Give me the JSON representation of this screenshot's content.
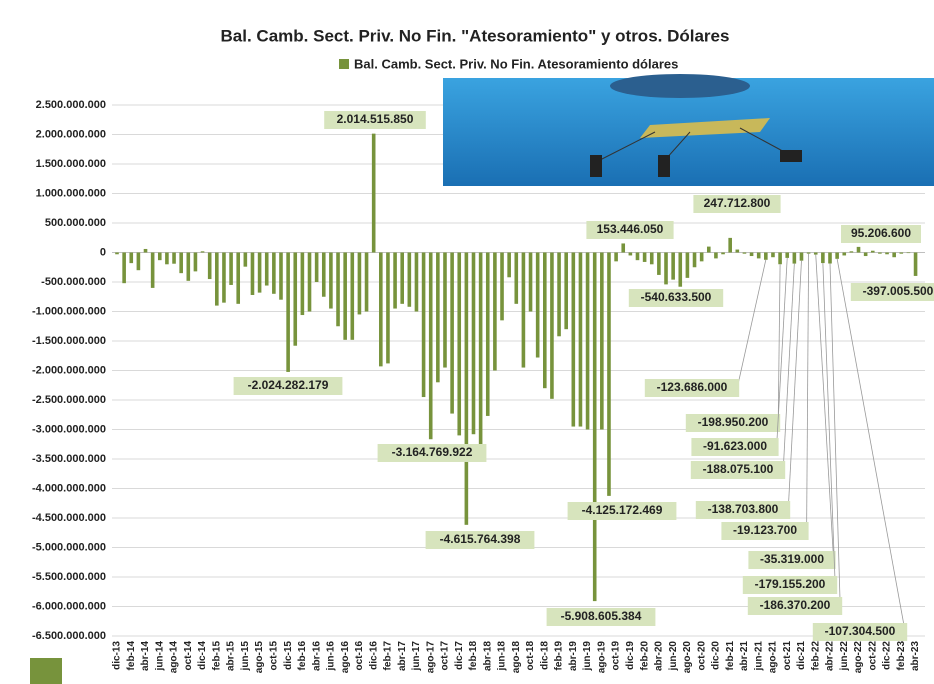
{
  "chart_data": {
    "type": "bar",
    "title": "Bal. Camb. Sect. Priv. No Fin. \"Atesoramiento\"  y otros. Dólares",
    "categories": [
      "dic-13",
      null,
      "feb-14",
      null,
      "abr-14",
      null,
      "jun-14",
      null,
      "ago-14",
      null,
      "oct-14",
      null,
      "dic-14",
      null,
      "feb-15",
      null,
      "abr-15",
      null,
      "jun-15",
      null,
      "ago-15",
      null,
      "oct-15",
      null,
      "dic-15",
      null,
      "feb-16",
      null,
      "abr-16",
      null,
      "jun-16",
      null,
      "ago-16",
      null,
      "oct-16",
      null,
      "dic-16",
      null,
      "feb-17",
      null,
      "abr-17",
      null,
      "jun-17",
      null,
      "ago-17",
      null,
      "oct-17",
      null,
      "dic-17",
      null,
      "feb-18",
      null,
      "abr-18",
      null,
      "jun-18",
      null,
      "ago-18",
      null,
      "oct-18",
      null,
      "dic-18",
      null,
      "feb-19",
      null,
      "abr-19",
      null,
      "jun-19",
      null,
      "ago-19",
      null,
      "oct-19",
      null,
      "dic-19",
      null,
      "feb-20",
      null,
      "abr-20",
      null,
      "jun-20",
      null,
      "ago-20",
      null,
      "oct-20",
      null,
      "dic-20",
      null,
      "feb-21",
      null,
      "abr-21",
      null,
      "jun-21",
      null,
      "ago-21",
      null,
      "oct-21",
      null,
      "dic-21",
      null,
      "feb-22",
      null,
      "abr-22",
      null,
      "jun-22",
      null,
      "ago-22",
      null,
      "oct-22",
      null,
      "dic-22",
      null,
      "feb-23",
      null,
      "abr-23"
    ],
    "series": [
      {
        "name": "Bal. Camb. Sect. Priv. No Fin. Atesoramiento dólares",
        "color": "#77933c",
        "values": [
          -30000000,
          -520000000,
          -180000000,
          -300000000,
          60000000,
          -600000000,
          -130000000,
          -200000000,
          -190000000,
          -350000000,
          -480000000,
          -320000000,
          20000000,
          -450000000,
          -900000000,
          -850000000,
          -550000000,
          -870000000,
          -240000000,
          -720000000,
          -680000000,
          -560000000,
          -700000000,
          -800000000,
          -2024282179,
          -1580000000,
          -1060000000,
          -1000000000,
          -500000000,
          -750000000,
          -950000000,
          -1250000000,
          -1480000000,
          -1480000000,
          -1050000000,
          -1000000000,
          2014515850,
          -1930000000,
          -1880000000,
          -950000000,
          -870000000,
          -920000000,
          -1000000000,
          -2450000000,
          -3164769922,
          -2200000000,
          -1950000000,
          -2730000000,
          -3100000000,
          -4615764398,
          -3080000000,
          -3350000000,
          -2770000000,
          -2000000000,
          -1150000000,
          -420000000,
          -870000000,
          -1950000000,
          -1000000000,
          -1780000000,
          -2300000000,
          -2480000000,
          -1420000000,
          -1300000000,
          -2950000000,
          -2950000000,
          -3000000000,
          -5908605384,
          -3000000000,
          -4125172469,
          -150000000,
          153446050,
          -50000000,
          -130000000,
          -160000000,
          -200000000,
          -380000000,
          -540633500,
          -460000000,
          -580000000,
          -430000000,
          -250000000,
          -150000000,
          100000000,
          -100000000,
          -30000000,
          247712800,
          50000000,
          -20000000,
          -60000000,
          -100000000,
          -123686000,
          -80000000,
          -198950200,
          -91623000,
          -188075100,
          -138703800,
          -19123700,
          -35319000,
          -179155200,
          -186370200,
          -107304500,
          -50000000,
          20000000,
          95206600,
          -60000000,
          30000000,
          -20000000,
          -30000000,
          -80000000,
          -20000000,
          -10000000,
          -397005500
        ],
        "value_labels": [
          null,
          null,
          null,
          null,
          null,
          null,
          null,
          null,
          null,
          null,
          null,
          null,
          null,
          null,
          null,
          null,
          null,
          null,
          null,
          null,
          null,
          null,
          null,
          null,
          "-2.024.282.179",
          null,
          null,
          null,
          null,
          null,
          null,
          null,
          null,
          null,
          null,
          null,
          "2.014.515.850",
          null,
          null,
          null,
          null,
          null,
          null,
          null,
          "-3.164.769.922",
          null,
          null,
          null,
          null,
          "-4.615.764.398",
          null,
          null,
          null,
          null,
          null,
          null,
          null,
          null,
          null,
          null,
          null,
          null,
          null,
          null,
          null,
          null,
          null,
          "-5.908.605.384",
          null,
          "-4.125.172.469",
          null,
          "153.446.050",
          null,
          null,
          null,
          null,
          null,
          "-540.633.500",
          null,
          null,
          null,
          null,
          null,
          null,
          null,
          null,
          "247.712.800",
          null,
          null,
          null,
          null,
          "-123.686.000",
          null,
          "-198.950.200",
          "-91.623.000",
          "-188.075.100",
          "-138.703.800",
          "-19.123.700",
          "-35.319.000",
          "-179.155.200",
          "-186.370.200",
          "-107.304.500",
          null,
          null,
          "95.206.600",
          null,
          null,
          null,
          null,
          null,
          null,
          null,
          "-397.005.500"
        ]
      }
    ],
    "ylim": [
      -6500000000,
      2500000000
    ],
    "yticks": [
      {
        "value": 2500000000,
        "label": "2.500.000.000"
      },
      {
        "value": 2000000000,
        "label": "2.000.000.000"
      },
      {
        "value": 1500000000,
        "label": "1.500.000.000"
      },
      {
        "value": 1000000000,
        "label": "1.000.000.000"
      },
      {
        "value": 500000000,
        "label": "500.000.000"
      },
      0,
      {
        "value": -500000000,
        "label": "-500.000.000"
      },
      {
        "value": -1000000000,
        "label": "-1.000.000.000"
      },
      {
        "value": -1500000000,
        "label": "-1.500.000.000"
      },
      {
        "value": -2000000000,
        "label": "-2.000.000.000"
      },
      {
        "value": -2500000000,
        "label": "-2.500.000.000"
      },
      {
        "value": -3000000000,
        "label": "-3.000.000.000"
      },
      {
        "value": -3500000000,
        "label": "-3.500.000.000"
      },
      {
        "value": -4000000000,
        "label": "-4.000.000.000"
      },
      {
        "value": -4500000000,
        "label": "-4.500.000.000"
      },
      {
        "value": -5000000000,
        "label": "-5.000.000.000"
      },
      {
        "value": -5500000000,
        "label": "-5.500.000.000"
      },
      {
        "value": -6000000000,
        "label": "-6.000.000.000"
      },
      {
        "value": -6500000000,
        "label": "-6.500.000.000"
      }
    ],
    "grid": true
  }
}
